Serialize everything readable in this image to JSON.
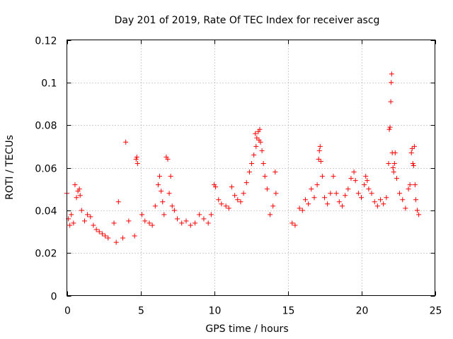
{
  "chart_data": {
    "type": "scatter",
    "title": "Day 201 of 2019, Rate Of TEC Index for receiver ascg",
    "xlabel": "GPS time / hours",
    "ylabel": "ROTI / TECUs",
    "xlim": [
      0,
      25
    ],
    "ylim": [
      0,
      0.12
    ],
    "grid": true,
    "marker": "+",
    "xticks": [
      0,
      5,
      10,
      15,
      20,
      25
    ],
    "xtick_labels": [
      "0",
      "5",
      "10",
      "15",
      "20",
      "25"
    ],
    "yticks": [
      0,
      0.02,
      0.04,
      0.06,
      0.08,
      0.1,
      0.12
    ],
    "ytick_labels": [
      "0",
      "0.02",
      "0.04",
      "0.06",
      "0.08",
      "0.1",
      "0.12"
    ],
    "series": [
      {
        "name": "ROTI",
        "color": "#ff0000",
        "points": [
          [
            0.0,
            0.048
          ],
          [
            0.1,
            0.036
          ],
          [
            0.2,
            0.033
          ],
          [
            0.3,
            0.038
          ],
          [
            0.45,
            0.034
          ],
          [
            0.55,
            0.052
          ],
          [
            0.65,
            0.046
          ],
          [
            0.75,
            0.049
          ],
          [
            0.85,
            0.05
          ],
          [
            0.9,
            0.047
          ],
          [
            1.0,
            0.04
          ],
          [
            1.2,
            0.035
          ],
          [
            1.4,
            0.038
          ],
          [
            1.6,
            0.037
          ],
          [
            1.8,
            0.033
          ],
          [
            2.0,
            0.031
          ],
          [
            2.2,
            0.03
          ],
          [
            2.4,
            0.029
          ],
          [
            2.6,
            0.028
          ],
          [
            2.8,
            0.027
          ],
          [
            3.2,
            0.034
          ],
          [
            3.35,
            0.025
          ],
          [
            3.5,
            0.044
          ],
          [
            3.8,
            0.027
          ],
          [
            4.0,
            0.072
          ],
          [
            4.2,
            0.035
          ],
          [
            4.6,
            0.028
          ],
          [
            4.7,
            0.064
          ],
          [
            4.8,
            0.062
          ],
          [
            4.75,
            0.065
          ],
          [
            5.1,
            0.038
          ],
          [
            5.3,
            0.035
          ],
          [
            5.6,
            0.034
          ],
          [
            5.8,
            0.033
          ],
          [
            6.0,
            0.042
          ],
          [
            6.2,
            0.052
          ],
          [
            6.3,
            0.056
          ],
          [
            6.4,
            0.049
          ],
          [
            6.5,
            0.044
          ],
          [
            6.6,
            0.038
          ],
          [
            6.75,
            0.065
          ],
          [
            6.85,
            0.064
          ],
          [
            6.95,
            0.048
          ],
          [
            7.05,
            0.056
          ],
          [
            7.15,
            0.042
          ],
          [
            7.3,
            0.04
          ],
          [
            7.5,
            0.036
          ],
          [
            7.8,
            0.034
          ],
          [
            8.1,
            0.035
          ],
          [
            8.4,
            0.033
          ],
          [
            8.7,
            0.034
          ],
          [
            9.0,
            0.038
          ],
          [
            9.3,
            0.036
          ],
          [
            9.6,
            0.034
          ],
          [
            9.8,
            0.038
          ],
          [
            10.0,
            0.052
          ],
          [
            10.1,
            0.051
          ],
          [
            10.3,
            0.045
          ],
          [
            10.5,
            0.043
          ],
          [
            10.8,
            0.042
          ],
          [
            11.0,
            0.041
          ],
          [
            11.2,
            0.051
          ],
          [
            11.4,
            0.047
          ],
          [
            11.6,
            0.045
          ],
          [
            11.8,
            0.044
          ],
          [
            12.0,
            0.048
          ],
          [
            12.2,
            0.053
          ],
          [
            12.4,
            0.058
          ],
          [
            12.55,
            0.062
          ],
          [
            12.7,
            0.066
          ],
          [
            12.8,
            0.076
          ],
          [
            12.85,
            0.07
          ],
          [
            12.9,
            0.074
          ],
          [
            13.0,
            0.077
          ],
          [
            13.05,
            0.073
          ],
          [
            13.1,
            0.078
          ],
          [
            13.15,
            0.072
          ],
          [
            13.25,
            0.068
          ],
          [
            13.35,
            0.062
          ],
          [
            13.45,
            0.056
          ],
          [
            13.6,
            0.05
          ],
          [
            13.8,
            0.038
          ],
          [
            14.0,
            0.042
          ],
          [
            14.15,
            0.058
          ],
          [
            14.2,
            0.048
          ],
          [
            15.3,
            0.034
          ],
          [
            15.5,
            0.033
          ],
          [
            15.8,
            0.041
          ],
          [
            16.0,
            0.04
          ],
          [
            16.2,
            0.045
          ],
          [
            16.4,
            0.043
          ],
          [
            16.6,
            0.05
          ],
          [
            16.8,
            0.046
          ],
          [
            17.0,
            0.052
          ],
          [
            17.1,
            0.064
          ],
          [
            17.15,
            0.068
          ],
          [
            17.2,
            0.07
          ],
          [
            17.25,
            0.063
          ],
          [
            17.35,
            0.056
          ],
          [
            17.5,
            0.046
          ],
          [
            17.7,
            0.043
          ],
          [
            17.9,
            0.048
          ],
          [
            18.1,
            0.056
          ],
          [
            18.3,
            0.048
          ],
          [
            18.5,
            0.044
          ],
          [
            18.7,
            0.042
          ],
          [
            18.9,
            0.047
          ],
          [
            19.1,
            0.05
          ],
          [
            19.3,
            0.055
          ],
          [
            19.5,
            0.058
          ],
          [
            19.6,
            0.054
          ],
          [
            19.8,
            0.048
          ],
          [
            20.0,
            0.046
          ],
          [
            20.2,
            0.052
          ],
          [
            20.3,
            0.056
          ],
          [
            20.4,
            0.054
          ],
          [
            20.5,
            0.05
          ],
          [
            20.7,
            0.048
          ],
          [
            20.9,
            0.044
          ],
          [
            21.1,
            0.042
          ],
          [
            21.3,
            0.045
          ],
          [
            21.5,
            0.043
          ],
          [
            21.7,
            0.046
          ],
          [
            21.85,
            0.062
          ],
          [
            21.9,
            0.078
          ],
          [
            21.95,
            0.079
          ],
          [
            22.0,
            0.091
          ],
          [
            22.03,
            0.1
          ],
          [
            22.06,
            0.104
          ],
          [
            22.1,
            0.067
          ],
          [
            22.15,
            0.06
          ],
          [
            22.2,
            0.058
          ],
          [
            22.25,
            0.062
          ],
          [
            22.3,
            0.067
          ],
          [
            22.4,
            0.055
          ],
          [
            22.6,
            0.048
          ],
          [
            22.8,
            0.045
          ],
          [
            23.0,
            0.041
          ],
          [
            23.2,
            0.05
          ],
          [
            23.3,
            0.052
          ],
          [
            23.4,
            0.067
          ],
          [
            23.45,
            0.069
          ],
          [
            23.5,
            0.062
          ],
          [
            23.55,
            0.061
          ],
          [
            23.6,
            0.07
          ],
          [
            23.65,
            0.052
          ],
          [
            23.7,
            0.045
          ],
          [
            23.8,
            0.04
          ],
          [
            23.9,
            0.038
          ]
        ]
      }
    ]
  }
}
